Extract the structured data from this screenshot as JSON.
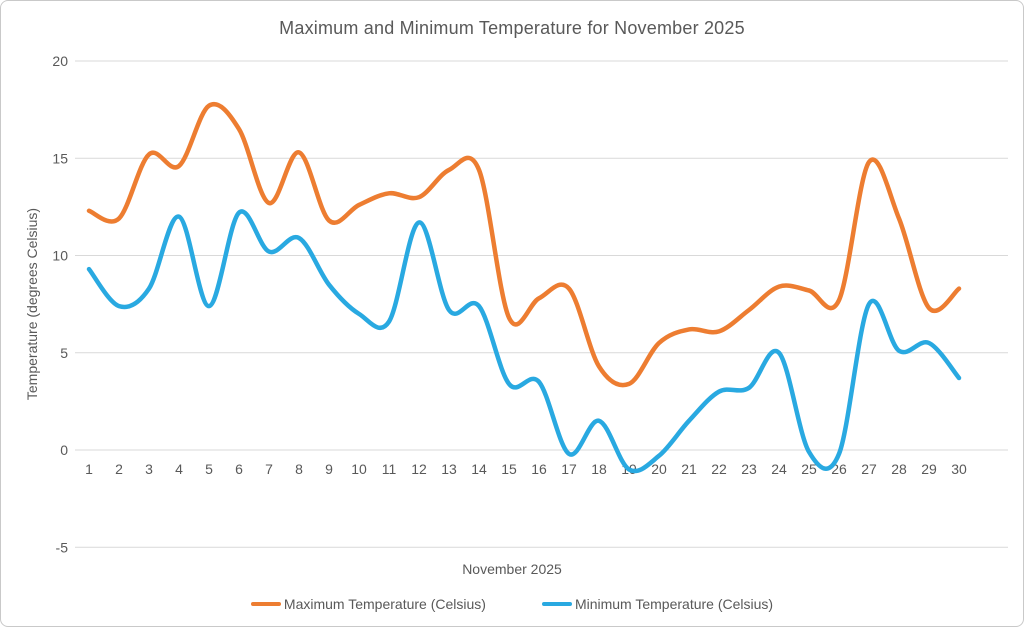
{
  "chart": {
    "border_color": "#c9c9c9",
    "gridline_color": "#d9d9d9",
    "text_color": "#595959",
    "background": "#ffffff"
  },
  "chart_data": {
    "type": "line",
    "title": "Maximum and Minimum Temperature for November 2025",
    "xlabel": "November 2025",
    "ylabel": "Temperature (degrees Celsius)",
    "x": [
      1,
      2,
      3,
      4,
      5,
      6,
      7,
      8,
      9,
      10,
      11,
      12,
      13,
      14,
      15,
      16,
      17,
      18,
      19,
      20,
      21,
      22,
      23,
      24,
      25,
      26,
      27,
      28,
      29,
      30
    ],
    "series": [
      {
        "name": "Maximum Temperature (Celsius)",
        "color": "#ED7D31",
        "values": [
          12.3,
          11.9,
          15.2,
          14.6,
          17.7,
          16.5,
          12.7,
          15.3,
          11.8,
          12.6,
          13.2,
          13.0,
          14.4,
          14.4,
          6.8,
          7.8,
          8.3,
          4.3,
          3.4,
          5.5,
          6.2,
          6.1,
          7.2,
          8.4,
          8.2,
          7.7,
          14.8,
          11.9,
          7.3,
          8.3
        ]
      },
      {
        "name": "Minimum Temperature (Celsius)",
        "color": "#29A9E1",
        "values": [
          9.3,
          7.4,
          8.3,
          12.0,
          7.4,
          12.2,
          10.2,
          10.9,
          8.5,
          7.0,
          6.6,
          11.7,
          7.2,
          7.4,
          3.4,
          3.5,
          -0.2,
          1.5,
          -1.0,
          -0.3,
          1.5,
          3.0,
          3.2,
          5.0,
          -0.1,
          -0.2,
          7.5,
          5.1,
          5.5,
          3.7
        ]
      }
    ],
    "ylim": [
      -5,
      20
    ],
    "yticks": [
      20,
      15,
      10,
      5,
      0,
      -5
    ],
    "grid": true,
    "smooth": true,
    "legend_position": "bottom"
  }
}
